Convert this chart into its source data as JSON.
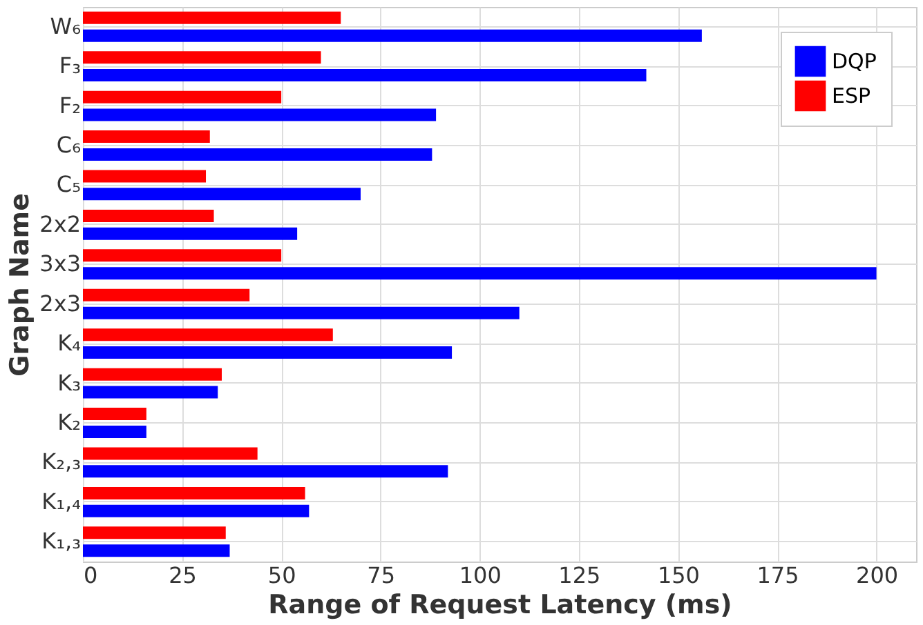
{
  "chart_data": {
    "type": "bar",
    "orientation": "horizontal",
    "xlabel": "Range of Request Latency (ms)",
    "ylabel": "Graph Name",
    "categories": [
      "W₆",
      "F₃",
      "F₂",
      "C₆",
      "C₅",
      "2x2",
      "3x3",
      "2x3",
      "K₄",
      "K₃",
      "K₂",
      "K₂,₃",
      "K₁,₄",
      "K₁,₃"
    ],
    "series": [
      {
        "name": "DQP",
        "color": "#0000ff",
        "values": [
          156,
          142,
          89,
          88,
          70,
          54,
          200,
          110,
          93,
          34,
          16,
          92,
          57,
          37
        ]
      },
      {
        "name": "ESP",
        "color": "#ff0000",
        "values": [
          65,
          60,
          50,
          32,
          31,
          33,
          50,
          42,
          63,
          35,
          16,
          44,
          56,
          36
        ]
      }
    ],
    "xlim": [
      0,
      210
    ],
    "xticks": [
      0,
      25,
      50,
      75,
      100,
      125,
      150,
      175,
      200
    ],
    "grid": true,
    "legend": "top right"
  }
}
